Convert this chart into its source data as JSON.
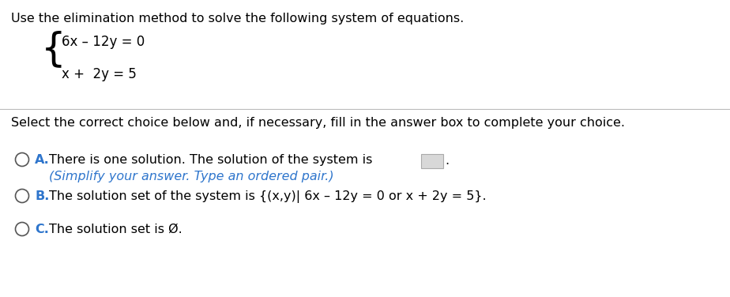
{
  "title": "Use the elimination method to solve the following system of equations.",
  "eq1": "6x – 12y = 0",
  "eq2": "x +  2y = 5",
  "divider_text": "Select the correct choice below and, if necessary, fill in the answer box to complete your choice.",
  "choice_A_bold": "A.",
  "choice_A_main": "There is one solution. The solution of the system is",
  "choice_A_sub": "(Simplify your answer. Type an ordered pair.)",
  "choice_B_bold": "B.",
  "choice_B_text": "The solution set of the system is {(x,y)| 6x – 12y = 0 or x + 2y = 5}.",
  "choice_C_bold": "C.",
  "choice_C_text": "The solution set is Ø.",
  "bg_color": "#ffffff",
  "text_color": "#000000",
  "blue_color": "#2e75cc",
  "line_color": "#bbbbbb",
  "title_fontsize": 11.5,
  "body_fontsize": 11.5,
  "eq_fontsize": 12.0,
  "brace_fontsize": 36,
  "circle_r": 0.013,
  "figwidth": 9.24,
  "figheight": 3.76,
  "dpi": 100
}
